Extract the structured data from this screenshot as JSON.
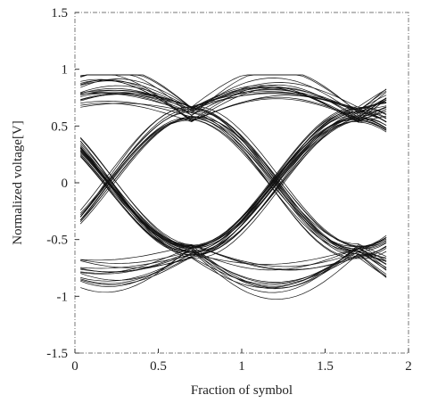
{
  "chart_data": {
    "type": "line",
    "title": "",
    "xlabel": "Fraction of symbol",
    "ylabel": "Normalized voltage[V]",
    "xlim": [
      0,
      2
    ],
    "ylim": [
      -1.5,
      1.5
    ],
    "x_ticks": [
      "0",
      "0.5",
      "1",
      "1.5",
      "2"
    ],
    "y_ticks": [
      "1.5",
      "1",
      "0.5",
      "0",
      "-0.5",
      "-1",
      "-1.5"
    ],
    "x_tick_values": [
      0,
      0.5,
      1,
      1.5,
      2
    ],
    "y_tick_values": [
      1.5,
      1,
      0.5,
      0,
      -0.5,
      -1,
      -1.5
    ],
    "grid": false,
    "legend": "none",
    "eye": {
      "symbol_period": 1,
      "eye_crossings_x": [
        0.7,
        1.7
      ],
      "upper_level": 0.6,
      "lower_level": -0.6,
      "crossing_levels": [
        0.5,
        -0.5
      ],
      "max_excursion": 0.95,
      "min_excursion": -1.05,
      "x_max": 1.88
    },
    "trace_color": "#111111"
  }
}
